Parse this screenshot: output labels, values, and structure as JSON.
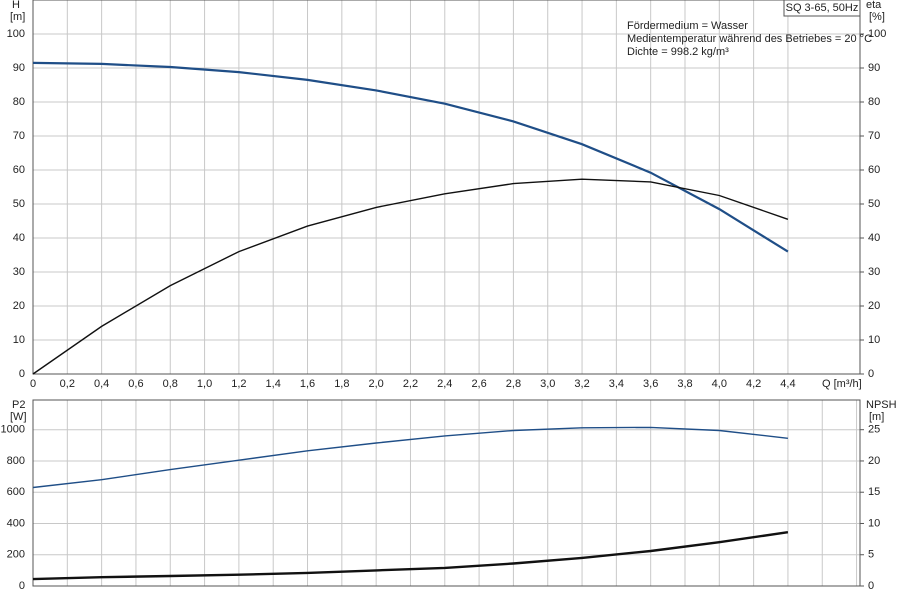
{
  "chart_data": [
    {
      "type": "line",
      "title": "SQ 3-65, 50Hz",
      "annotations": [
        "Fördermedium = Wasser",
        "Medientemperatur während des Betriebes = 20 °C",
        "Dichte = 998.2 kg/m³"
      ],
      "ylabel": "H",
      "yunit": "[m]",
      "y2label": "eta",
      "y2unit": "[%]",
      "xlabel": "Q [m³/h]",
      "x": [
        0,
        0.4,
        0.8,
        1.2,
        1.6,
        2.0,
        2.4,
        2.8,
        3.2,
        3.6,
        4.0,
        4.4
      ],
      "series": [
        {
          "color": "#1f4e87",
          "values": [
            91.5,
            91.2,
            90.3,
            88.8,
            86.5,
            83.4,
            79.5,
            74.3,
            67.6,
            59.2,
            48.5,
            36
          ]
        },
        {
          "color": "#111111",
          "axis": "y2",
          "values": [
            0,
            14,
            26,
            36,
            43.5,
            49,
            53,
            56,
            57.3,
            56.5,
            52.5,
            45.5
          ]
        }
      ],
      "xlim": [
        0,
        4.82
      ],
      "ylim": [
        0,
        110
      ],
      "y2lim": [
        0,
        110
      ],
      "xticks": [
        0,
        {
          "value": 0.2,
          "label": "0,2"
        },
        {
          "value": 0.4,
          "label": "0,4"
        },
        {
          "value": 0.6,
          "label": "0,6"
        },
        {
          "value": 0.8,
          "label": "0,8"
        },
        {
          "value": 1.0,
          "label": "1,0"
        },
        {
          "value": 1.2,
          "label": "1,2"
        },
        {
          "value": 1.4,
          "label": "1,4"
        },
        {
          "value": 1.6,
          "label": "1,6"
        },
        {
          "value": 1.8,
          "label": "1,8"
        },
        {
          "value": 2.0,
          "label": "2,0"
        },
        {
          "value": 2.2,
          "label": "2,2"
        },
        {
          "value": 2.4,
          "label": "2,4"
        },
        {
          "value": 2.6,
          "label": "2,6"
        },
        {
          "value": 2.8,
          "label": "2,8"
        },
        {
          "value": 3.0,
          "label": "3,0"
        },
        {
          "value": 3.2,
          "label": "3,2"
        },
        {
          "value": 3.4,
          "label": "3,4"
        },
        {
          "value": 3.6,
          "label": "3,6"
        },
        {
          "value": 3.8,
          "label": "3,8"
        },
        {
          "value": 4.0,
          "label": "4,0"
        },
        {
          "value": 4.2,
          "label": "4,2"
        },
        {
          "value": 4.4,
          "label": "4,4"
        }
      ],
      "yticks": [
        0,
        10,
        20,
        30,
        40,
        50,
        60,
        70,
        80,
        90,
        100
      ],
      "y2ticks": [
        0,
        10,
        20,
        30,
        40,
        50,
        60,
        70,
        80,
        90,
        100
      ],
      "grid": true
    },
    {
      "type": "line",
      "ylabel": "P2",
      "yunit": "[W]",
      "y2label": "NPSH",
      "y2unit": "[m]",
      "x": [
        0,
        0.4,
        0.8,
        1.2,
        1.6,
        2.0,
        2.4,
        2.8,
        3.2,
        3.6,
        4.0,
        4.4
      ],
      "series": [
        {
          "color": "#1f4e87",
          "values": [
            630,
            680,
            745,
            805,
            865,
            915,
            960,
            995,
            1012,
            1015,
            995,
            945
          ]
        },
        {
          "color": "#111111",
          "axis": "y2",
          "values": [
            1.1,
            1.4,
            1.6,
            1.8,
            2.1,
            2.5,
            2.9,
            3.6,
            4.5,
            5.6,
            7.0,
            8.6
          ]
        }
      ],
      "xlim": [
        0,
        4.82
      ],
      "ylim": [
        0,
        1190
      ],
      "y2lim": [
        0,
        29.75
      ],
      "xticks": [
        0,
        0.2,
        0.4,
        0.6,
        0.8,
        1,
        1.2,
        1.4,
        1.6,
        1.8,
        2,
        2.2,
        2.4,
        2.6,
        2.8,
        3,
        3.2,
        3.4,
        3.6,
        3.8,
        4,
        4.2,
        4.4,
        4.6,
        4.8
      ],
      "yticks": [
        0,
        200,
        400,
        600,
        800,
        1000
      ],
      "y2ticks": [
        0,
        5,
        10,
        15,
        20,
        25
      ],
      "grid": true
    }
  ]
}
